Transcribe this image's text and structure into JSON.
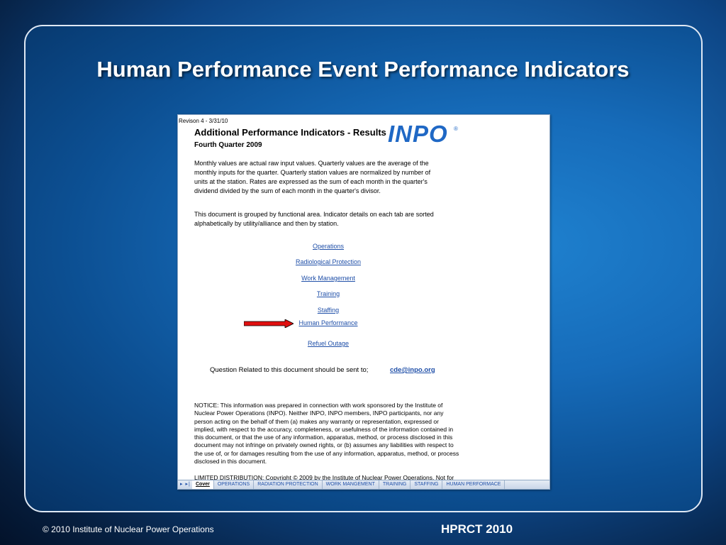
{
  "slide": {
    "title": "Human Performance Event Performance Indicators",
    "footer_left": "© 2010 Institute of Nuclear Power Operations",
    "footer_right": "HPRCT 2010"
  },
  "document": {
    "revision": "Revison 4 - 3/31/10",
    "title": "Additional Performance  Indicators - Results",
    "subtitle": "Fourth Quarter 2009",
    "logo_text": "INPO",
    "logo_mark": "®",
    "paragraph1": [
      "Monthly values are actual raw input values.  Quarterly values are the average of the",
      "monthly inputs for the quarter.  Quarterly station values are normalized by number of",
      "units at the station.  Rates are expressed as the sum of each month in the quarter's",
      "dividend divided by the sum of each month in the quarter's divisor."
    ],
    "paragraph2": [
      "This document is grouped by functional area.  Indicator details on each tab are sorted",
      "alphabetically by utility/alliance and then by station."
    ],
    "links": [
      "Operations",
      "Radiological Protection",
      "Work Management",
      "Training",
      "Staffing",
      "Human Performance",
      "Refuel Outage"
    ],
    "question_text": "Question Related to this document should be sent to;",
    "email": "cde@inpo.org",
    "notice": [
      "NOTICE:  This information was prepared in connection with work sponsored by the Institute of",
      "Nuclear Power Operations (INPO).  Neither INPO, INPO members, INPO participants, nor any",
      "person acting on the behalf of them (a) makes any warranty or representation, expressed or",
      "implied, with respect to the accuracy, completeness, or usefulness of the information contained in",
      "this document, or that the use of any information, apparatus, method, or process disclosed in this",
      "document may not infringe on privately owned rights, or (b) assumes any liabilities with respect to",
      "the use of, or for damages resulting from the use of any information, apparatus, method, or process",
      "disclosed in this document."
    ],
    "limited": "LIMITED DISTRIBUTION:  Copyright © 2009 by the Institute of Nuclear Power Operations.  Not for",
    "tab_nav": "▸ ▸|",
    "tabs": [
      "Cover",
      "OPERATIONS",
      "RADIATION PROTECTION",
      "WORK MANGEMENT",
      "TRAINING",
      "STAFFING",
      "HUMAN PERFORMACE"
    ],
    "arrow_color": "#e01010"
  }
}
